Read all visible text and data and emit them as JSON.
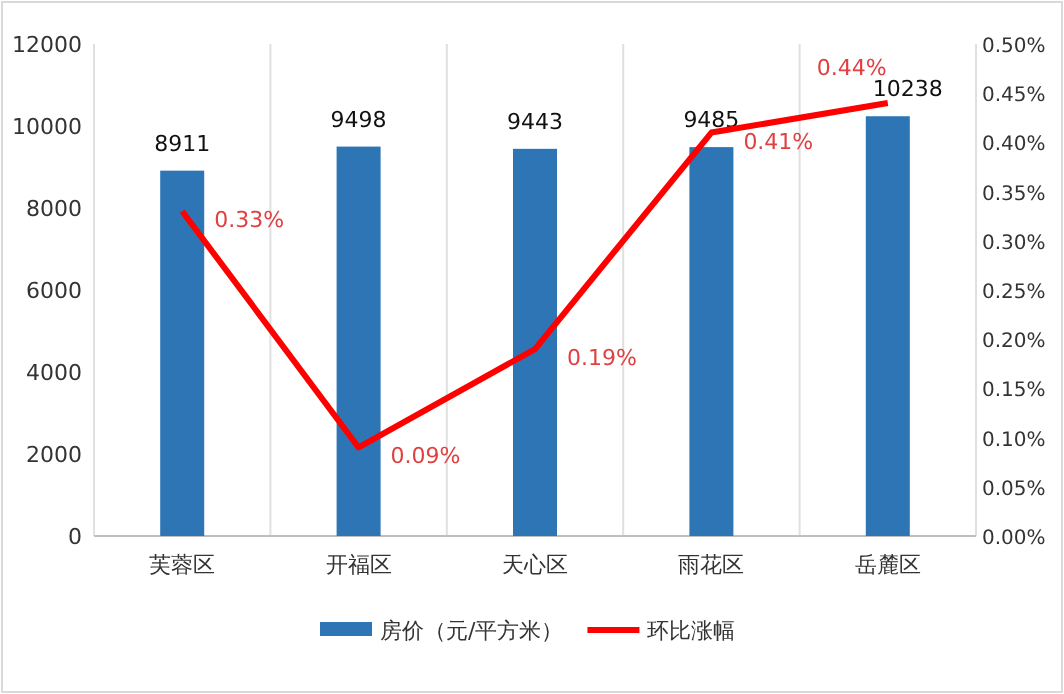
{
  "chart_data": {
    "type": "bar",
    "categories": [
      "芙蓉区",
      "开福区",
      "天心区",
      "雨花区",
      "岳麓区"
    ],
    "series": [
      {
        "name": "房价（元/平方米）",
        "color": "#2e75b6",
        "values": [
          8911,
          9498,
          9443,
          9485,
          10238
        ],
        "value_labels": [
          "8911",
          "9498",
          "9443",
          "9485",
          "10238"
        ]
      },
      {
        "name": "环比涨幅",
        "type": "line",
        "axis": "y2",
        "color": "#ff0000",
        "values": [
          0.33,
          0.09,
          0.19,
          0.41,
          0.44
        ],
        "value_labels": [
          "0.33%",
          "0.09%",
          "0.19%",
          "0.41%",
          "0.44%"
        ]
      }
    ],
    "ylim": [
      0,
      12000
    ],
    "yticks": [
      0,
      2000,
      4000,
      6000,
      8000,
      10000,
      12000
    ],
    "y2lim": [
      0,
      0.5
    ],
    "y2ticks": [
      {
        "value": 0,
        "label": "0.00%"
      },
      {
        "value": 0.05,
        "label": "0.05%"
      },
      {
        "value": 0.1,
        "label": "0.10%"
      },
      {
        "value": 0.15,
        "label": "0.15%"
      },
      {
        "value": 0.2,
        "label": "0.20%"
      },
      {
        "value": 0.25,
        "label": "0.25%"
      },
      {
        "value": 0.3,
        "label": "0.30%"
      },
      {
        "value": 0.35,
        "label": "0.35%"
      },
      {
        "value": 0.4,
        "label": "0.40%"
      },
      {
        "value": 0.45,
        "label": "0.45%"
      },
      {
        "value": 0.5,
        "label": "0.50%"
      }
    ],
    "grid": "x",
    "legend": "bottom",
    "marker": "none",
    "line_style": "solid"
  }
}
